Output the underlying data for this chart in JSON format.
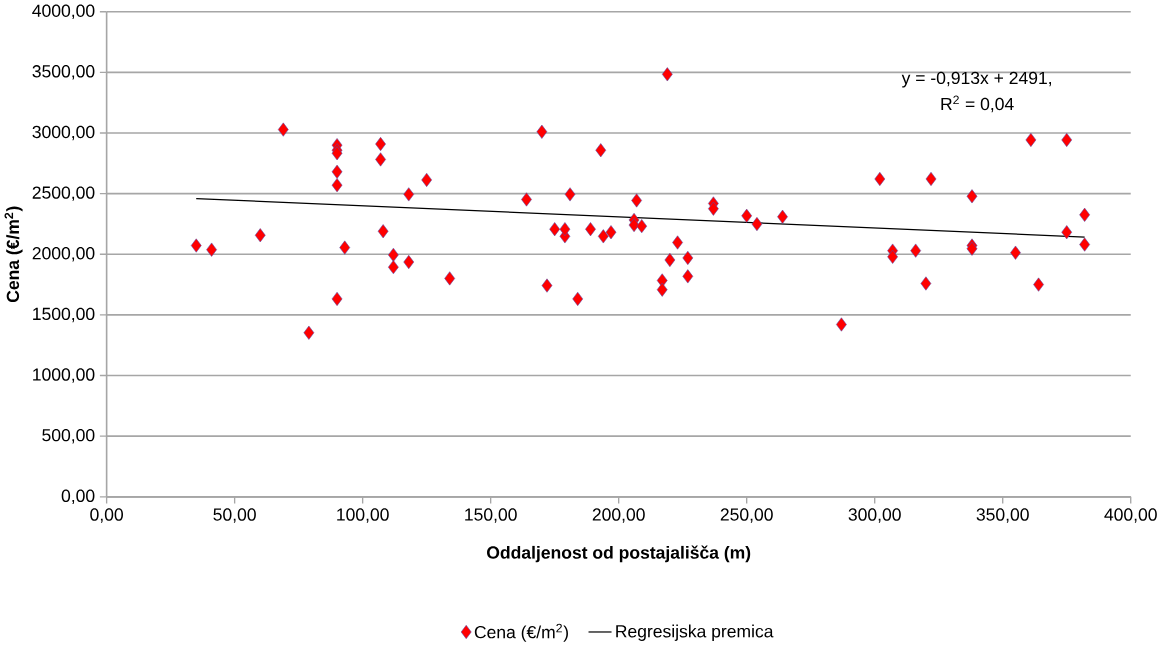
{
  "chart_data": {
    "type": "scatter",
    "xlabel": "Oddaljenost od postajališča  (m)",
    "ylabel": "Cena (€/m$^{2}$)",
    "xlim": [
      0,
      400
    ],
    "ylim": [
      0,
      4000
    ],
    "xticks": [
      {
        "value": 0,
        "label": "0,00"
      },
      {
        "value": 50,
        "label": "50,00"
      },
      {
        "value": 100,
        "label": "100,00"
      },
      {
        "value": 150,
        "label": "150,00"
      },
      {
        "value": 200,
        "label": "200,00"
      },
      {
        "value": 250,
        "label": "250,00"
      },
      {
        "value": 300,
        "label": "300,00"
      },
      {
        "value": 350,
        "label": "350,00"
      },
      {
        "value": 400,
        "label": "400,00"
      }
    ],
    "yticks": [
      {
        "value": 0,
        "label": "0,00"
      },
      {
        "value": 500,
        "label": "500,00"
      },
      {
        "value": 1000,
        "label": "1000,00"
      },
      {
        "value": 1500,
        "label": "1500,00"
      },
      {
        "value": 2000,
        "label": "2000,00"
      },
      {
        "value": 2500,
        "label": "2500,00"
      },
      {
        "value": 3000,
        "label": "3000,00"
      },
      {
        "value": 3500,
        "label": "3500,00"
      },
      {
        "value": 4000,
        "label": "4000,00"
      }
    ],
    "grid": "y",
    "legend": "bottom",
    "marker": "diamond",
    "annotations": [
      "y = -0,913x + 2491,",
      "R$^{2}$ = 0,04"
    ],
    "series": [
      {
        "name": "Cena (€/m$^{2}$)",
        "color": "#ff0000",
        "x": [
          35,
          41,
          60,
          79,
          69,
          90,
          90,
          90,
          90,
          90,
          90,
          93,
          107,
          107,
          108,
          112,
          112,
          118,
          118,
          125,
          134,
          164,
          170,
          172,
          175,
          179,
          179,
          181,
          184,
          189,
          193,
          194,
          197,
          206,
          206,
          207,
          209,
          219,
          217,
          217,
          220,
          223,
          227,
          227,
          237,
          237,
          250,
          254,
          264,
          287,
          302,
          307,
          307,
          316,
          320,
          322,
          338,
          338,
          338,
          355,
          361,
          364,
          375,
          375,
          382,
          382
        ],
        "values": [
          2072,
          2038,
          2157,
          1353,
          3028,
          2900,
          2858,
          2833,
          2680,
          2570,
          1632,
          2055,
          2909,
          2782,
          2190,
          1995,
          1894,
          1936,
          2494,
          2613,
          1801,
          2452,
          3010,
          1742,
          2207,
          2148,
          2207,
          2494,
          1632,
          2207,
          2858,
          2148,
          2182,
          2283,
          2241,
          2444,
          2232,
          3484,
          1784,
          1708,
          1953,
          2097,
          1970,
          1818,
          2419,
          2376,
          2317,
          2249,
          2309,
          1421,
          2621,
          2030,
          1979,
          2030,
          1759,
          2621,
          2478,
          2072,
          2046,
          2013,
          2943,
          1750,
          2943,
          2182,
          2325,
          2080
        ]
      },
      {
        "name": "Regresijska premica",
        "color": "#000000",
        "type": "line",
        "marker": "none",
        "x": [
          35,
          382
        ],
        "values": [
          2459,
          2142
        ]
      }
    ]
  }
}
